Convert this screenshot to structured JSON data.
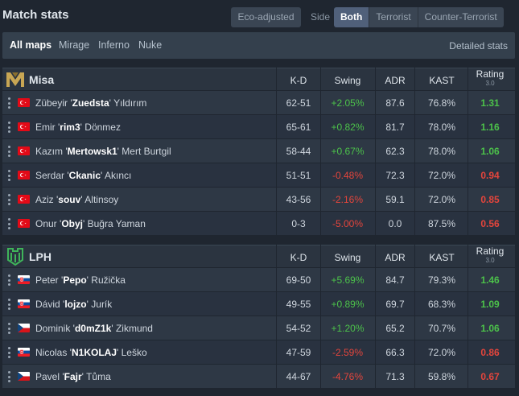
{
  "header": {
    "title": "Match stats",
    "eco_label": "Eco-adjusted",
    "side_label": "Side",
    "side_options": [
      "Both",
      "Terrorist",
      "Counter-Terrorist"
    ],
    "side_active": "Both"
  },
  "maps": {
    "tabs": [
      "All maps",
      "Mirage",
      "Inferno",
      "Nuke"
    ],
    "active": "All maps",
    "detailed_label": "Detailed stats"
  },
  "columns": {
    "kd": "K-D",
    "swing": "Swing",
    "adr": "ADR",
    "kast": "KAST",
    "rating": "Rating",
    "rating_version": "3.0"
  },
  "teams": [
    {
      "name": "Misa",
      "logo": "misa-logo",
      "logo_color": "#c8a654",
      "players": [
        {
          "first": "Zübeyir '",
          "nick": "Zuedsta",
          "last": "' Yıldırım",
          "flag": "tr",
          "kd": "62-51",
          "swing": "+2.05%",
          "adr": "87.6",
          "kast": "76.8%",
          "rating": "1.31"
        },
        {
          "first": "Emir '",
          "nick": "rim3",
          "last": "' Dönmez",
          "flag": "tr",
          "kd": "65-61",
          "swing": "+0.82%",
          "adr": "81.7",
          "kast": "78.0%",
          "rating": "1.16"
        },
        {
          "first": "Kazım '",
          "nick": "Mertowsk1",
          "last": "' Mert Burtgil",
          "flag": "tr",
          "kd": "58-44",
          "swing": "+0.67%",
          "adr": "62.3",
          "kast": "78.0%",
          "rating": "1.06"
        },
        {
          "first": "Serdar '",
          "nick": "Ckanic",
          "last": "' Akıncı",
          "flag": "tr",
          "kd": "51-51",
          "swing": "-0.48%",
          "adr": "72.3",
          "kast": "72.0%",
          "rating": "0.94"
        },
        {
          "first": "Aziz '",
          "nick": "souv",
          "last": "' Altinsoy",
          "flag": "tr",
          "kd": "43-56",
          "swing": "-2.16%",
          "adr": "59.1",
          "kast": "72.0%",
          "rating": "0.85"
        },
        {
          "first": "Onur '",
          "nick": "Obyj",
          "last": "' Buğra Yaman",
          "flag": "tr",
          "kd": "0-3",
          "swing": "-5.00%",
          "adr": "0.0",
          "kast": "87.5%",
          "rating": "0.56"
        }
      ]
    },
    {
      "name": "LPH",
      "logo": "lph-logo",
      "logo_color": "#3fb45a",
      "players": [
        {
          "first": "Peter '",
          "nick": "Pepo",
          "last": "' Ružička",
          "flag": "sk",
          "kd": "69-50",
          "swing": "+5.69%",
          "adr": "84.7",
          "kast": "79.3%",
          "rating": "1.46"
        },
        {
          "first": "Dávid '",
          "nick": "lojzo",
          "last": "' Jurík",
          "flag": "sk",
          "kd": "49-55",
          "swing": "+0.89%",
          "adr": "69.7",
          "kast": "68.3%",
          "rating": "1.09"
        },
        {
          "first": "Dominik '",
          "nick": "d0mZ1k",
          "last": "' Zikmund",
          "flag": "cz",
          "kd": "54-52",
          "swing": "+1.20%",
          "adr": "65.2",
          "kast": "70.7%",
          "rating": "1.06"
        },
        {
          "first": "Nicolas '",
          "nick": "N1KOLAJ",
          "last": "' Leško",
          "flag": "sk",
          "kd": "47-59",
          "swing": "-2.59%",
          "adr": "66.3",
          "kast": "72.0%",
          "rating": "0.86"
        },
        {
          "first": "Pavel '",
          "nick": "Fajr",
          "last": "' Tůma",
          "flag": "cz",
          "kd": "44-67",
          "swing": "-4.76%",
          "adr": "71.3",
          "kast": "59.8%",
          "rating": "0.67"
        }
      ]
    }
  ],
  "colors": {
    "positive": "#4cc24a",
    "negative": "#e4453c"
  }
}
